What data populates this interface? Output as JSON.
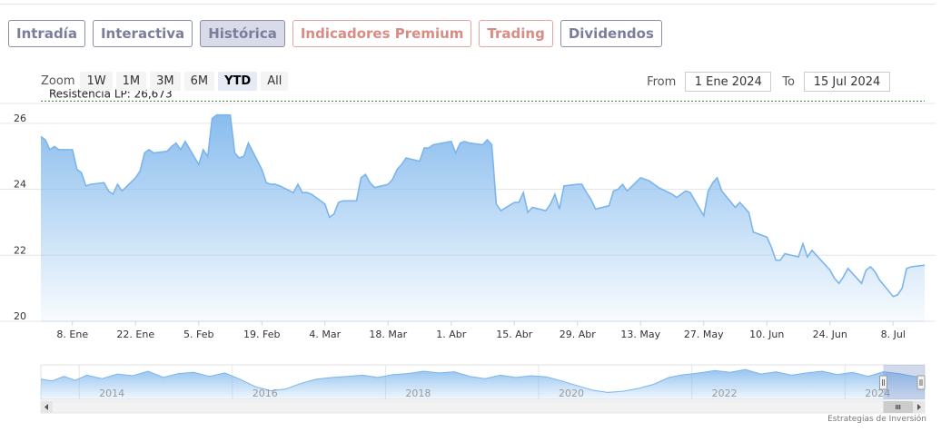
{
  "tabs": [
    {
      "label": "Intradía",
      "style": "normal"
    },
    {
      "label": "Interactiva",
      "style": "normal"
    },
    {
      "label": "Histórica",
      "style": "active"
    },
    {
      "label": "Indicadores Premium",
      "style": "premium"
    },
    {
      "label": "Trading",
      "style": "premium"
    },
    {
      "label": "Dividendos",
      "style": "normal"
    }
  ],
  "zoom": {
    "label": "Zoom",
    "buttons": [
      "1W",
      "1M",
      "3M",
      "6M",
      "YTD",
      "All"
    ],
    "active": "YTD"
  },
  "range": {
    "from_label": "From",
    "from_value": "1 Ene 2024",
    "to_label": "To",
    "to_value": "15 Jul 2024"
  },
  "credit": "Estrategias de Inversión",
  "colors": {
    "line": "#7cb5ec",
    "fill_top": "#7cb5ec",
    "resistance": "#2e7d32",
    "tab_border": "#8b8fa8",
    "premium": "#d98c84"
  },
  "chart_data": {
    "type": "area",
    "title": "",
    "xlabel": "",
    "ylabel": "",
    "ylim": [
      20,
      26.6
    ],
    "yticks": [
      20,
      22,
      24,
      26
    ],
    "x_tick_labels": [
      "8. Ene",
      "22. Ene",
      "5. Feb",
      "19. Feb",
      "4. Mar",
      "18. Mar",
      "1. Abr",
      "15. Abr",
      "29. Abr",
      "13. May",
      "27. May",
      "10. Jun",
      "24. Jun",
      "8. Jul"
    ],
    "x_tick_dates": [
      "2024-01-08",
      "2024-01-22",
      "2024-02-05",
      "2024-02-19",
      "2024-03-04",
      "2024-03-18",
      "2024-04-01",
      "2024-04-15",
      "2024-04-29",
      "2024-05-13",
      "2024-05-27",
      "2024-06-10",
      "2024-06-24",
      "2024-07-08"
    ],
    "x_range": [
      "2024-01-01",
      "2024-07-15"
    ],
    "grid": "horizontal",
    "legend": "none",
    "annotation": {
      "label": "Resistencia LP: 26,673",
      "value": 26.673
    },
    "series": [
      {
        "points": [
          [
            "2024-01-01",
            25.6
          ],
          [
            "2024-01-02",
            25.5
          ],
          [
            "2024-01-03",
            25.2
          ],
          [
            "2024-01-04",
            25.3
          ],
          [
            "2024-01-05",
            25.2
          ],
          [
            "2024-01-08",
            25.2
          ],
          [
            "2024-01-09",
            24.6
          ],
          [
            "2024-01-10",
            24.5
          ],
          [
            "2024-01-11",
            24.1
          ],
          [
            "2024-01-12",
            24.15
          ],
          [
            "2024-01-15",
            24.2
          ],
          [
            "2024-01-16",
            23.95
          ],
          [
            "2024-01-17",
            23.85
          ],
          [
            "2024-01-18",
            24.15
          ],
          [
            "2024-01-19",
            23.95
          ],
          [
            "2024-01-22",
            24.35
          ],
          [
            "2024-01-23",
            24.55
          ],
          [
            "2024-01-24",
            25.1
          ],
          [
            "2024-01-25",
            25.2
          ],
          [
            "2024-01-26",
            25.1
          ],
          [
            "2024-01-29",
            25.15
          ],
          [
            "2024-01-30",
            25.3
          ],
          [
            "2024-01-31",
            25.4
          ],
          [
            "2024-02-01",
            25.2
          ],
          [
            "2024-02-02",
            25.45
          ],
          [
            "2024-02-05",
            24.75
          ],
          [
            "2024-02-06",
            25.2
          ],
          [
            "2024-02-07",
            25.0
          ],
          [
            "2024-02-08",
            26.15
          ],
          [
            "2024-02-09",
            26.25
          ],
          [
            "2024-02-12",
            26.25
          ],
          [
            "2024-02-13",
            25.1
          ],
          [
            "2024-02-14",
            24.95
          ],
          [
            "2024-02-15",
            25.0
          ],
          [
            "2024-02-16",
            25.4
          ],
          [
            "2024-02-19",
            24.6
          ],
          [
            "2024-02-20",
            24.2
          ],
          [
            "2024-02-21",
            24.15
          ],
          [
            "2024-02-22",
            24.15
          ],
          [
            "2024-02-23",
            24.1
          ],
          [
            "2024-02-26",
            23.9
          ],
          [
            "2024-02-27",
            24.15
          ],
          [
            "2024-02-28",
            23.9
          ],
          [
            "2024-02-29",
            23.9
          ],
          [
            "2024-03-01",
            23.85
          ],
          [
            "2024-03-04",
            23.55
          ],
          [
            "2024-03-05",
            23.15
          ],
          [
            "2024-03-06",
            23.25
          ],
          [
            "2024-03-07",
            23.6
          ],
          [
            "2024-03-08",
            23.65
          ],
          [
            "2024-03-11",
            23.65
          ],
          [
            "2024-03-12",
            24.35
          ],
          [
            "2024-03-13",
            24.45
          ],
          [
            "2024-03-14",
            24.2
          ],
          [
            "2024-03-15",
            24.05
          ],
          [
            "2024-03-18",
            24.15
          ],
          [
            "2024-03-19",
            24.3
          ],
          [
            "2024-03-20",
            24.6
          ],
          [
            "2024-03-21",
            24.75
          ],
          [
            "2024-03-22",
            24.95
          ],
          [
            "2024-03-25",
            24.85
          ],
          [
            "2024-03-26",
            25.25
          ],
          [
            "2024-03-27",
            25.25
          ],
          [
            "2024-03-28",
            25.35
          ],
          [
            "2024-04-01",
            25.45
          ],
          [
            "2024-04-02",
            25.1
          ],
          [
            "2024-04-03",
            25.4
          ],
          [
            "2024-04-04",
            25.45
          ],
          [
            "2024-04-05",
            25.4
          ],
          [
            "2024-04-08",
            25.35
          ],
          [
            "2024-04-09",
            25.5
          ],
          [
            "2024-04-10",
            25.35
          ],
          [
            "2024-04-11",
            23.55
          ],
          [
            "2024-04-12",
            23.35
          ],
          [
            "2024-04-15",
            23.6
          ],
          [
            "2024-04-16",
            23.6
          ],
          [
            "2024-04-17",
            23.9
          ],
          [
            "2024-04-18",
            23.3
          ],
          [
            "2024-04-19",
            23.45
          ],
          [
            "2024-04-22",
            23.35
          ],
          [
            "2024-04-23",
            23.55
          ],
          [
            "2024-04-24",
            23.85
          ],
          [
            "2024-04-25",
            23.4
          ],
          [
            "2024-04-26",
            24.1
          ],
          [
            "2024-04-29",
            24.15
          ],
          [
            "2024-04-30",
            24.15
          ],
          [
            "2024-05-01",
            23.9
          ],
          [
            "2024-05-02",
            23.7
          ],
          [
            "2024-05-03",
            23.4
          ],
          [
            "2024-05-06",
            23.5
          ],
          [
            "2024-05-07",
            23.95
          ],
          [
            "2024-05-08",
            24.0
          ],
          [
            "2024-05-09",
            24.15
          ],
          [
            "2024-05-10",
            23.95
          ],
          [
            "2024-05-13",
            24.35
          ],
          [
            "2024-05-14",
            24.3
          ],
          [
            "2024-05-15",
            24.25
          ],
          [
            "2024-05-16",
            24.15
          ],
          [
            "2024-05-17",
            24.05
          ],
          [
            "2024-05-20",
            23.85
          ],
          [
            "2024-05-21",
            23.75
          ],
          [
            "2024-05-22",
            23.85
          ],
          [
            "2024-05-23",
            23.95
          ],
          [
            "2024-05-24",
            23.9
          ],
          [
            "2024-05-27",
            23.2
          ],
          [
            "2024-05-28",
            23.95
          ],
          [
            "2024-05-29",
            24.2
          ],
          [
            "2024-05-30",
            24.35
          ],
          [
            "2024-05-31",
            23.95
          ],
          [
            "2024-06-03",
            23.45
          ],
          [
            "2024-06-04",
            23.6
          ],
          [
            "2024-06-05",
            23.45
          ],
          [
            "2024-06-06",
            23.3
          ],
          [
            "2024-06-07",
            22.7
          ],
          [
            "2024-06-10",
            22.55
          ],
          [
            "2024-06-11",
            22.25
          ],
          [
            "2024-06-12",
            21.85
          ],
          [
            "2024-06-13",
            21.85
          ],
          [
            "2024-06-14",
            22.05
          ],
          [
            "2024-06-17",
            21.95
          ],
          [
            "2024-06-18",
            22.35
          ],
          [
            "2024-06-19",
            21.95
          ],
          [
            "2024-06-20",
            22.15
          ],
          [
            "2024-06-21",
            22.0
          ],
          [
            "2024-06-24",
            21.55
          ],
          [
            "2024-06-25",
            21.3
          ],
          [
            "2024-06-26",
            21.15
          ],
          [
            "2024-06-27",
            21.35
          ],
          [
            "2024-06-28",
            21.6
          ],
          [
            "2024-07-01",
            21.15
          ],
          [
            "2024-07-02",
            21.55
          ],
          [
            "2024-07-03",
            21.65
          ],
          [
            "2024-07-04",
            21.5
          ],
          [
            "2024-07-05",
            21.25
          ],
          [
            "2024-07-08",
            20.75
          ],
          [
            "2024-07-09",
            20.8
          ],
          [
            "2024-07-10",
            21.0
          ],
          [
            "2024-07-11",
            21.6
          ],
          [
            "2024-07-12",
            21.65
          ],
          [
            "2024-07-15",
            21.7
          ]
        ]
      }
    ],
    "navigator": {
      "x_tick_labels": [
        "2014",
        "2016",
        "2018",
        "2020",
        "2022",
        "2024"
      ],
      "x_range_years": [
        2013.0,
        2024.54
      ],
      "selection": [
        "2024-01-01",
        "2024-07-15"
      ],
      "points": [
        [
          2013.0,
          20.5
        ],
        [
          2013.15,
          20.2
        ],
        [
          2013.3,
          21.0
        ],
        [
          2013.45,
          20.3
        ],
        [
          2013.6,
          21.2
        ],
        [
          2013.8,
          20.6
        ],
        [
          2014.0,
          21.4
        ],
        [
          2014.2,
          21.1
        ],
        [
          2014.4,
          21.9
        ],
        [
          2014.6,
          20.8
        ],
        [
          2014.8,
          21.5
        ],
        [
          2015.0,
          21.7
        ],
        [
          2015.2,
          21.0
        ],
        [
          2015.4,
          21.6
        ],
        [
          2015.6,
          20.5
        ],
        [
          2015.8,
          19.2
        ],
        [
          2016.0,
          18.5
        ],
        [
          2016.2,
          18.8
        ],
        [
          2016.4,
          19.8
        ],
        [
          2016.6,
          20.5
        ],
        [
          2016.8,
          20.8
        ],
        [
          2017.0,
          21.0
        ],
        [
          2017.2,
          21.2
        ],
        [
          2017.4,
          20.8
        ],
        [
          2017.6,
          21.3
        ],
        [
          2017.8,
          21.5
        ],
        [
          2018.0,
          21.9
        ],
        [
          2018.2,
          21.6
        ],
        [
          2018.4,
          21.8
        ],
        [
          2018.6,
          21.0
        ],
        [
          2018.8,
          20.6
        ],
        [
          2019.0,
          21.2
        ],
        [
          2019.2,
          20.8
        ],
        [
          2019.4,
          21.1
        ],
        [
          2019.6,
          20.9
        ],
        [
          2019.8,
          20.2
        ],
        [
          2020.0,
          19.4
        ],
        [
          2020.2,
          18.6
        ],
        [
          2020.4,
          18.2
        ],
        [
          2020.6,
          18.4
        ],
        [
          2020.8,
          18.9
        ],
        [
          2021.0,
          19.6
        ],
        [
          2021.2,
          20.8
        ],
        [
          2021.4,
          21.3
        ],
        [
          2021.6,
          21.6
        ],
        [
          2021.8,
          22.0
        ],
        [
          2022.0,
          21.7
        ],
        [
          2022.2,
          22.2
        ],
        [
          2022.4,
          21.4
        ],
        [
          2022.6,
          21.8
        ],
        [
          2022.8,
          21.2
        ],
        [
          2023.0,
          21.6
        ],
        [
          2023.2,
          21.9
        ],
        [
          2023.4,
          21.3
        ],
        [
          2023.6,
          21.7
        ],
        [
          2023.8,
          21.0
        ],
        [
          2024.0,
          21.8
        ],
        [
          2024.2,
          21.5
        ],
        [
          2024.4,
          21.0
        ],
        [
          2024.54,
          20.9
        ]
      ]
    }
  }
}
